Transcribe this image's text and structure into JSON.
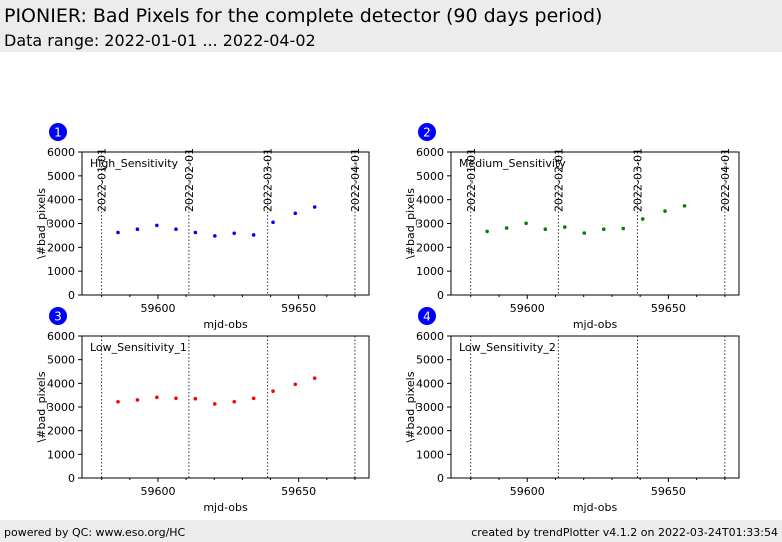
{
  "header": {
    "title": "PIONIER: Bad Pixels for the complete detector (90 days period)",
    "subtitle": "Data range: 2022-01-01 ... 2022-04-02"
  },
  "footer": {
    "left": "powered by QC: www.eso.org/HC",
    "right": "created by trendPlotter v4.1.2 on 2022-03-24T01:33:54"
  },
  "colors": {
    "header_bg": "#ececec",
    "badge": "#0000ff"
  },
  "chart_data": [
    {
      "type": "scatter",
      "badge": "1",
      "annotation": "High_Sensitivity",
      "color": "#0000ff",
      "xlabel": "mjd-obs",
      "ylabel": "\\#bad_pixels",
      "xlim": [
        59573,
        59675
      ],
      "ylim": [
        0,
        6000
      ],
      "xticks": [
        59600,
        59650
      ],
      "yticks": [
        0,
        1000,
        2000,
        3000,
        4000,
        5000,
        6000
      ],
      "date_markers": [
        {
          "x": 59580,
          "label": "2022-01-01"
        },
        {
          "x": 59611,
          "label": "2022-02-01"
        },
        {
          "x": 59639,
          "label": "2022-03-01"
        },
        {
          "x": 59670,
          "label": "2022-04-01"
        }
      ],
      "x": [
        59585.8,
        59592.7,
        59599.6,
        59606.4,
        59613.3,
        59620.2,
        59627.1,
        59634.0,
        59640.9,
        59648.8,
        59655.7
      ],
      "y": [
        2620,
        2760,
        2920,
        2760,
        2620,
        2480,
        2590,
        2520,
        3050,
        3430,
        3690
      ]
    },
    {
      "type": "scatter",
      "badge": "2",
      "annotation": "Medium_Sensitivity",
      "color": "#008000",
      "xlabel": "mjd-obs",
      "ylabel": "\\#bad_pixels",
      "xlim": [
        59573,
        59675
      ],
      "ylim": [
        0,
        6000
      ],
      "xticks": [
        59600,
        59650
      ],
      "yticks": [
        0,
        1000,
        2000,
        3000,
        4000,
        5000,
        6000
      ],
      "date_markers": [
        {
          "x": 59580,
          "label": "2022-01-01"
        },
        {
          "x": 59611,
          "label": "2022-02-01"
        },
        {
          "x": 59639,
          "label": "2022-03-01"
        },
        {
          "x": 59670,
          "label": "2022-04-01"
        }
      ],
      "x": [
        59585.8,
        59592.7,
        59599.6,
        59606.4,
        59613.3,
        59620.2,
        59627.1,
        59634.0,
        59640.9,
        59648.8,
        59655.7
      ],
      "y": [
        2670,
        2810,
        3010,
        2760,
        2850,
        2600,
        2760,
        2790,
        3190,
        3520,
        3740
      ]
    },
    {
      "type": "scatter",
      "badge": "3",
      "annotation": "Low_Sensitivity_1",
      "color": "#ff0000",
      "xlabel": "mjd-obs",
      "ylabel": "\\#bad_pixels",
      "xlim": [
        59573,
        59675
      ],
      "ylim": [
        0,
        6000
      ],
      "xticks": [
        59600,
        59650
      ],
      "yticks": [
        0,
        1000,
        2000,
        3000,
        4000,
        5000,
        6000
      ],
      "date_markers": [
        {
          "x": 59580
        },
        {
          "x": 59611
        },
        {
          "x": 59639
        },
        {
          "x": 59670
        }
      ],
      "x": [
        59585.8,
        59592.7,
        59599.6,
        59606.4,
        59613.3,
        59620.2,
        59627.1,
        59634.0,
        59640.9,
        59648.8,
        59655.7
      ],
      "y": [
        3220,
        3300,
        3410,
        3370,
        3350,
        3130,
        3220,
        3370,
        3670,
        3960,
        4220
      ]
    },
    {
      "type": "scatter",
      "badge": "4",
      "annotation": "Low_Sensitivity_2",
      "color": "#000000",
      "xlabel": "mjd-obs",
      "ylabel": "\\#bad_pixels",
      "xlim": [
        59573,
        59675
      ],
      "ylim": [
        0,
        6000
      ],
      "xticks": [
        59600,
        59650
      ],
      "yticks": [
        0,
        1000,
        2000,
        3000,
        4000,
        5000,
        6000
      ],
      "date_markers": [
        {
          "x": 59580
        },
        {
          "x": 59611
        },
        {
          "x": 59639
        },
        {
          "x": 59670
        }
      ],
      "x": [],
      "y": []
    }
  ]
}
